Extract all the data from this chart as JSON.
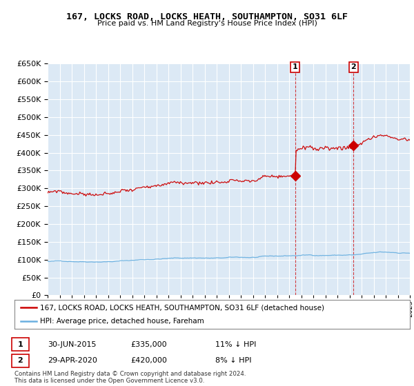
{
  "title": "167, LOCKS ROAD, LOCKS HEATH, SOUTHAMPTON, SO31 6LF",
  "subtitle": "Price paid vs. HM Land Registry's House Price Index (HPI)",
  "background_color": "#ffffff",
  "plot_bg_color": "#dce9f5",
  "grid_color": "#ffffff",
  "hpi_color": "#6ab0e0",
  "price_color": "#cc0000",
  "ylim": [
    0,
    650000
  ],
  "yticks": [
    0,
    50000,
    100000,
    150000,
    200000,
    250000,
    300000,
    350000,
    400000,
    450000,
    500000,
    550000,
    600000,
    650000
  ],
  "sale1_date": 2015.5,
  "sale1_price": 335000,
  "sale1_label": "1",
  "sale2_date": 2020.33,
  "sale2_price": 420000,
  "sale2_label": "2",
  "legend_red": "167, LOCKS ROAD, LOCKS HEATH, SOUTHAMPTON, SO31 6LF (detached house)",
  "legend_blue": "HPI: Average price, detached house, Fareham",
  "annot1_date": "30-JUN-2015",
  "annot1_price": "£335,000",
  "annot1_pct": "11% ↓ HPI",
  "annot2_date": "29-APR-2020",
  "annot2_price": "£420,000",
  "annot2_pct": "8% ↓ HPI",
  "footer": "Contains HM Land Registry data © Crown copyright and database right 2024.\nThis data is licensed under the Open Government Licence v3.0.",
  "xmin": 1995,
  "xmax": 2025
}
